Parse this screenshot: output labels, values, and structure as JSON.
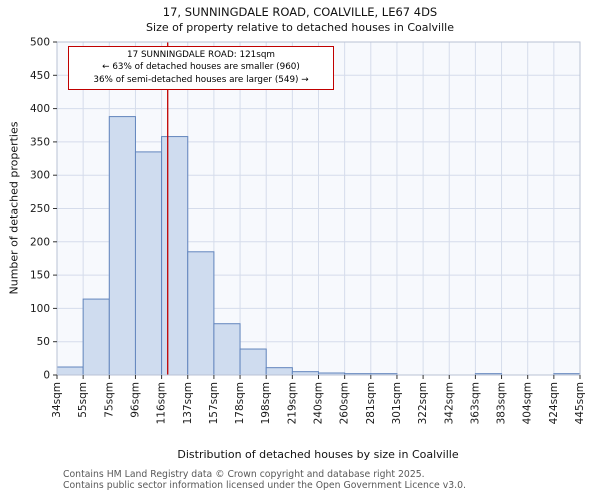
{
  "title": "17, SUNNINGDALE ROAD, COALVILLE, LE67 4DS",
  "subtitle": "Size of property relative to detached houses in Coalville",
  "chart_data": {
    "type": "bar",
    "title": "17, SUNNINGDALE ROAD, COALVILLE, LE67 4DS",
    "subtitle": "Size of property relative to detached houses in Coalville",
    "xlabel": "Distribution of detached houses by size in Coalville",
    "ylabel": "Number of detached properties",
    "bin_edges_sqm": [
      34,
      55,
      75,
      96,
      116,
      137,
      157,
      178,
      198,
      219,
      240,
      260,
      281,
      301,
      322,
      342,
      363,
      383,
      404,
      424,
      445
    ],
    "bin_labels": [
      "34sqm",
      "55sqm",
      "75sqm",
      "96sqm",
      "116sqm",
      "137sqm",
      "157sqm",
      "178sqm",
      "198sqm",
      "219sqm",
      "240sqm",
      "260sqm",
      "281sqm",
      "301sqm",
      "322sqm",
      "342sqm",
      "363sqm",
      "383sqm",
      "404sqm",
      "424sqm",
      "445sqm"
    ],
    "values": [
      12,
      114,
      388,
      335,
      358,
      185,
      77,
      39,
      11,
      5,
      3,
      2,
      2,
      0,
      0,
      0,
      2,
      0,
      0,
      2
    ],
    "ylim": [
      0,
      500
    ],
    "ytick_step": 50,
    "grid": true,
    "legend": "none",
    "marker": {
      "value": 121,
      "label": "121sqm",
      "color": "#c00000"
    },
    "colors": {
      "bar_fill": "#cfdcef",
      "bar_edge": "#6285bd",
      "grid": "#d5dceb",
      "plot_bg": "#f7f9fd",
      "frame": "#b9c2d4",
      "tick": "#333333",
      "tick_label": "#1a1a1a",
      "marker_line": "#c00000"
    }
  },
  "annotation": {
    "line1": "17 SUNNINGDALE ROAD: 121sqm",
    "line2": "← 63% of detached houses are smaller (960)",
    "line3": "36% of semi-detached houses are larger (549) →"
  },
  "footer": {
    "line1": "Contains HM Land Registry data © Crown copyright and database right 2025.",
    "line2": "Contains public sector information licensed under the Open Government Licence v3.0."
  }
}
